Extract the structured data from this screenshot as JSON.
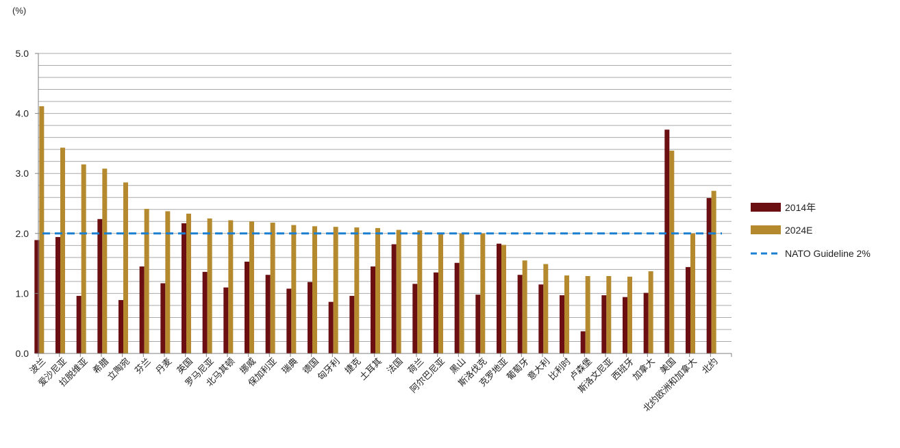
{
  "chart_data": {
    "type": "bar",
    "unit_label": "(%)",
    "ylim": [
      0,
      5.0
    ],
    "yticks": [
      "0.0",
      "1.0",
      "2.0",
      "3.0",
      "4.0",
      "5.0"
    ],
    "grid": true,
    "legend_position": "right",
    "categories": [
      "波兰",
      "爱沙尼亚",
      "拉脱维亚",
      "希腊",
      "立陶宛",
      "芬兰",
      "丹麦",
      "英国",
      "罗马尼亚",
      "北马其顿",
      "挪威",
      "保加利亚",
      "瑞典",
      "德国",
      "匈牙利",
      "捷克",
      "土耳其",
      "法国",
      "荷兰",
      "阿尔巴尼亚",
      "黑山",
      "斯洛伐克",
      "克罗地亚",
      "葡萄牙",
      "意大利",
      "比利时",
      "卢森堡",
      "斯洛文尼亚",
      "西班牙",
      "加拿大",
      "美国",
      "北约欧洲和加拿大",
      "北约"
    ],
    "series": [
      {
        "name": "2014年",
        "color": "#6b0f12",
        "values": [
          1.89,
          1.94,
          0.96,
          2.24,
          0.89,
          1.45,
          1.17,
          2.17,
          1.36,
          1.1,
          1.53,
          1.31,
          1.08,
          1.19,
          0.86,
          0.96,
          1.45,
          1.82,
          1.16,
          1.35,
          1.51,
          0.98,
          1.83,
          1.31,
          1.15,
          0.97,
          0.37,
          0.97,
          0.94,
          1.01,
          3.73,
          1.44,
          2.59
        ]
      },
      {
        "name": "2024E",
        "color": "#b58a2e",
        "values": [
          4.12,
          3.43,
          3.15,
          3.08,
          2.85,
          2.41,
          2.37,
          2.33,
          2.25,
          2.22,
          2.2,
          2.18,
          2.14,
          2.12,
          2.11,
          2.1,
          2.09,
          2.06,
          2.05,
          2.0,
          2.0,
          2.0,
          1.81,
          1.55,
          1.49,
          1.3,
          1.29,
          1.29,
          1.28,
          1.37,
          3.38,
          2.0,
          2.71
        ]
      }
    ],
    "reference_lines": [
      {
        "name": "NATO Guideline 2%",
        "value": 2.0,
        "color": "#1a7fd1",
        "style": "dashed"
      }
    ]
  }
}
